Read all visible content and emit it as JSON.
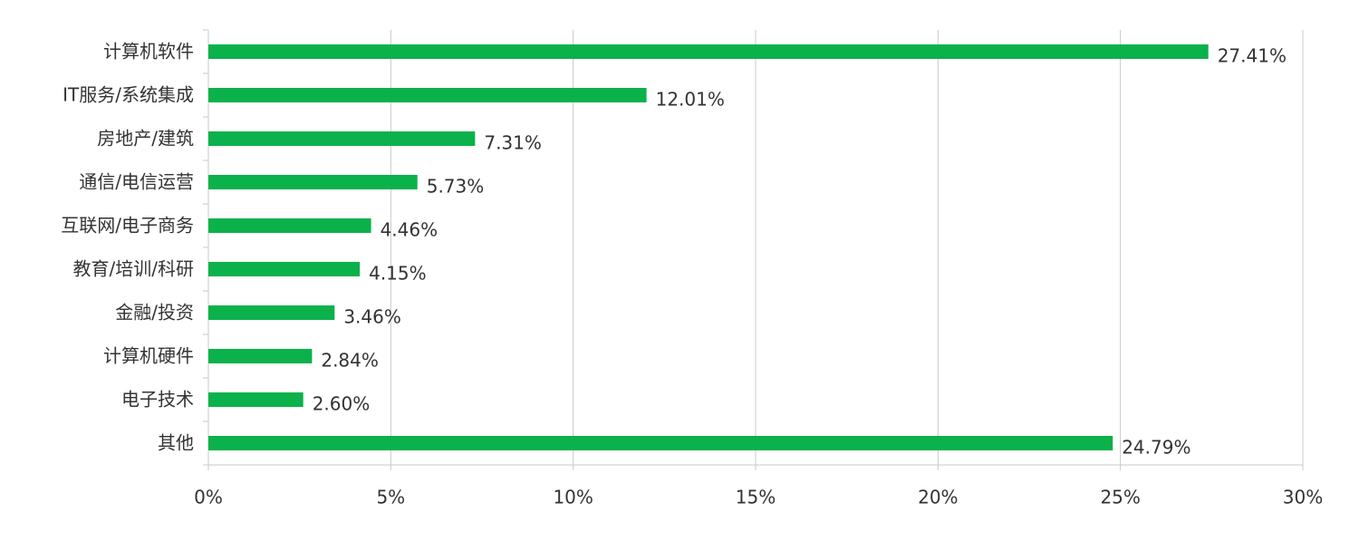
{
  "chart_data": {
    "type": "bar",
    "orientation": "horizontal",
    "categories": [
      "计算机软件",
      "IT服务/系统集成",
      "房地产/建筑",
      "通信/电信运营",
      "互联网/电子商务",
      "教育/培训/科研",
      "金融/投资",
      "计算机硬件",
      "电子技术",
      "其他"
    ],
    "values": [
      27.41,
      12.01,
      7.31,
      5.73,
      4.46,
      4.15,
      3.46,
      2.84,
      2.6,
      24.79
    ],
    "value_labels": [
      "27.41%",
      "12.01%",
      "7.31%",
      "5.73%",
      "4.46%",
      "4.15%",
      "3.46%",
      "2.84%",
      "2.60%",
      "24.79%"
    ],
    "color": "#0bb14b",
    "xlim": [
      0,
      30
    ],
    "xticks": [
      {
        "value": 0,
        "label": "0%"
      },
      {
        "value": 5,
        "label": "5%"
      },
      {
        "value": 10,
        "label": "10%"
      },
      {
        "value": 15,
        "label": "15%"
      },
      {
        "value": 20,
        "label": "20%"
      },
      {
        "value": 25,
        "label": "25%"
      },
      {
        "value": 30,
        "label": "30%"
      }
    ],
    "grid": true
  }
}
